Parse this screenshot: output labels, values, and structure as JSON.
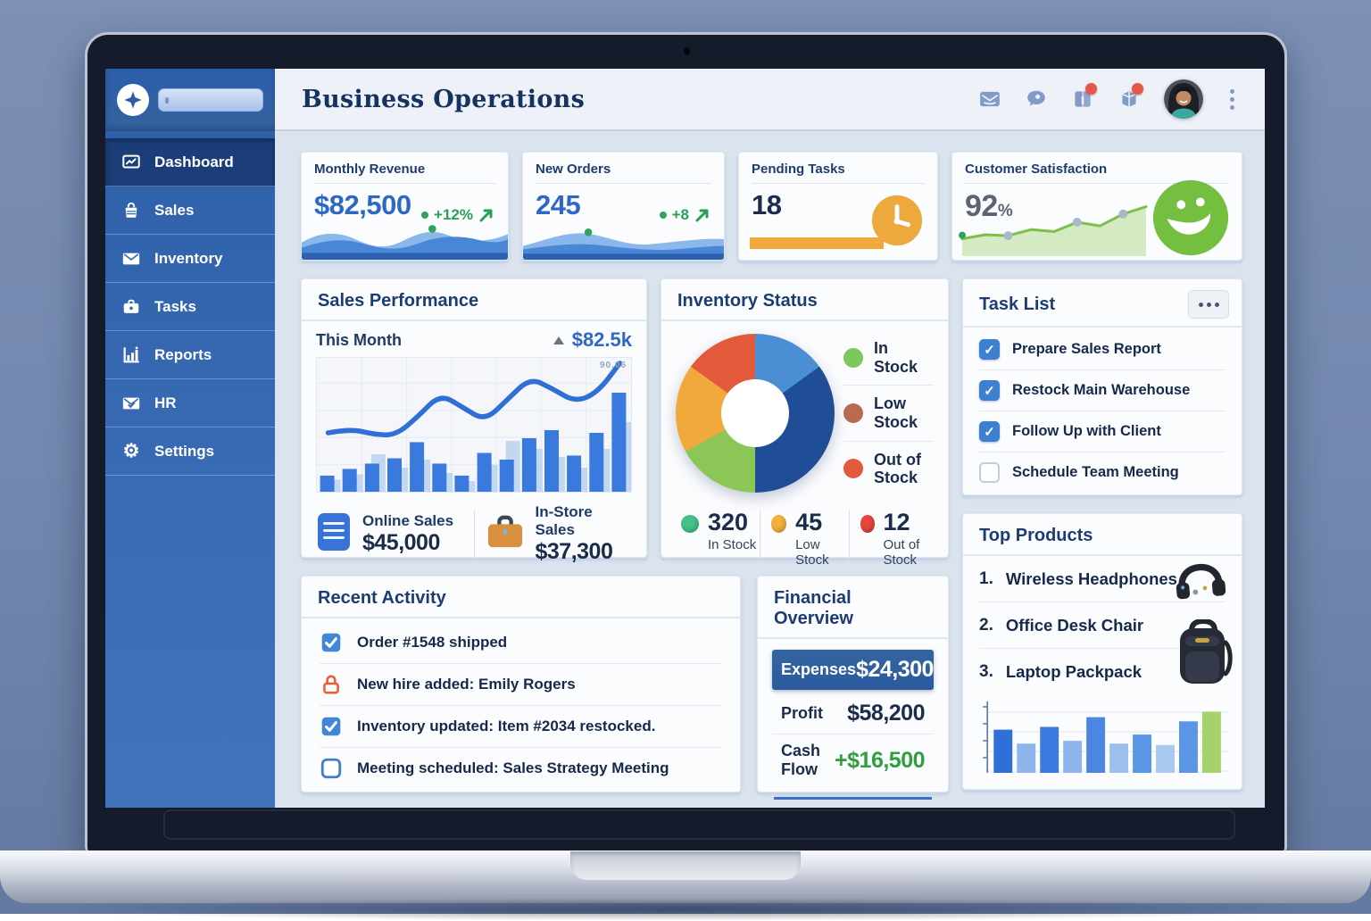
{
  "app": {
    "title": "Business Operations"
  },
  "sidebar": {
    "nav": [
      {
        "label": "Dashboard",
        "icon": "dashboard",
        "active": true
      },
      {
        "label": "Sales",
        "icon": "sales",
        "active": false
      },
      {
        "label": "Inventory",
        "icon": "inventory",
        "active": false
      },
      {
        "label": "Tasks",
        "icon": "tasks",
        "active": false
      },
      {
        "label": "Reports",
        "icon": "reports",
        "active": false
      },
      {
        "label": "HR",
        "icon": "hr",
        "active": false
      },
      {
        "label": "Settings",
        "icon": "settings",
        "active": false
      }
    ]
  },
  "header": {
    "actions": [
      {
        "icon": "mail",
        "badge": false
      },
      {
        "icon": "chat",
        "badge": false
      },
      {
        "icon": "contacts",
        "badge": true
      },
      {
        "icon": "notifications",
        "badge": true
      }
    ]
  },
  "kpis": {
    "monthly_revenue": {
      "title": "Monthly Revenue",
      "value": "$82,500",
      "delta": "+12%"
    },
    "new_orders": {
      "title": "New Orders",
      "value": "245",
      "delta": "+8"
    },
    "pending_tasks": {
      "title": "Pending Tasks",
      "value": "18"
    },
    "customer_satisfaction": {
      "title": "Customer Satisfaction",
      "value": "92",
      "unit": "%"
    }
  },
  "sales_performance": {
    "title": "Sales Performance",
    "period_label": "This Month",
    "period_value": "$82.5k",
    "chart_tag": "90.06",
    "stats": [
      {
        "label": "Online Sales",
        "value": "$45,000",
        "icon": "online"
      },
      {
        "label": "In-Store Sales",
        "value": "$37,300",
        "icon": "store"
      }
    ]
  },
  "inventory_status": {
    "title": "Inventory Status",
    "legend": [
      {
        "label": "In Stock",
        "color": "#7cc85c"
      },
      {
        "label": "Low Stock",
        "color": "#b96a50"
      },
      {
        "label": "Out of Stock",
        "color": "#e2593c"
      }
    ],
    "stats": [
      {
        "value": "320",
        "label": "In Stock",
        "color": "#45c287"
      },
      {
        "value": "45",
        "label": "Low Stock",
        "color": "#f2b13c"
      },
      {
        "value": "12",
        "label": "Out of Stock",
        "color": "#e6463c"
      }
    ]
  },
  "task_list": {
    "title": "Task List",
    "items": [
      {
        "label": "Prepare Sales Report",
        "checked": true
      },
      {
        "label": "Restock Main Warehouse",
        "checked": true
      },
      {
        "label": "Follow Up with Client",
        "checked": true
      },
      {
        "label": "Schedule Team Meeting",
        "checked": false
      }
    ]
  },
  "recent_activity": {
    "title": "Recent Activity",
    "items": [
      {
        "label": "Order #1548 shipped",
        "icon": "checkbox-checked"
      },
      {
        "label": "New hire added: Emily Rogers",
        "icon": "lock"
      },
      {
        "label": "Inventory updated: Item #2034 restocked.",
        "icon": "checkbox-checked"
      },
      {
        "label": "Meeting scheduled: Sales Strategy Meeting",
        "icon": "checkbox-empty"
      }
    ]
  },
  "financial_overview": {
    "title": "Financial Overview",
    "rows": [
      {
        "label": "Expenses",
        "value": "$24,300",
        "style": "highlight"
      },
      {
        "label": "Profit",
        "value": "$58,200",
        "style": "normal"
      },
      {
        "label": "Cash Flow",
        "value": "+$16,500",
        "style": "positive"
      }
    ]
  },
  "top_products": {
    "title": "Top Products",
    "items": [
      {
        "rank": "1.",
        "name": "Wireless Headphones"
      },
      {
        "rank": "2.",
        "name": "Office Desk Chair"
      },
      {
        "rank": "3.",
        "name": "Laptop Packpack"
      }
    ]
  },
  "chart_data": [
    {
      "id": "sales-performance-chart",
      "type": "bar",
      "title": "Sales Performance — This Month",
      "total_label": "$82.5k",
      "annotation": "90.06",
      "ylim": [
        0,
        100
      ],
      "grid": true,
      "series": [
        {
          "name": "daily-sales-bars",
          "type": "bar",
          "values": [
            12,
            17,
            21,
            25,
            37,
            21,
            12,
            29,
            24,
            40,
            46,
            27,
            44,
            74
          ]
        },
        {
          "name": "secondary-bars",
          "type": "bar",
          "values": [
            9,
            13,
            28,
            18,
            24,
            14,
            8,
            20,
            38,
            32,
            26,
            18,
            32,
            52
          ]
        },
        {
          "name": "trend-line",
          "type": "line",
          "values": [
            44,
            47,
            43,
            42,
            56,
            73,
            63,
            53,
            69,
            85,
            77,
            67,
            74,
            96
          ]
        }
      ]
    },
    {
      "id": "inventory-donut",
      "type": "pie",
      "title": "Inventory Status",
      "hole": 0.43,
      "slices": [
        {
          "label": "",
          "value": 15,
          "color": "#4a8fd4"
        },
        {
          "label": "",
          "value": 35,
          "color": "#1f4e97"
        },
        {
          "label": "In Stock",
          "value": 17,
          "color": "#8bc657"
        },
        {
          "label": "Low Stock",
          "value": 18,
          "color": "#f2a93b"
        },
        {
          "label": "Out of Stock",
          "value": 15,
          "color": "#e2593c"
        }
      ]
    },
    {
      "id": "satisfaction-spark",
      "type": "line",
      "title": "Customer Satisfaction trend",
      "ylim": [
        0,
        100
      ],
      "values": [
        30,
        38,
        36,
        48,
        44,
        62,
        55,
        78,
        92
      ]
    },
    {
      "id": "top-products-chart",
      "type": "bar",
      "title": "Top Products sales",
      "ylim": [
        0,
        100
      ],
      "values": [
        62,
        42,
        66,
        46,
        80,
        42,
        55,
        40,
        74,
        88
      ],
      "colors": [
        "#2e6fd8",
        "#8fb6ec",
        "#3b7ade",
        "#8fb6ec",
        "#4a86e2",
        "#9cc0ee",
        "#5b95e6",
        "#a9c9f0",
        "#5b95e6",
        "#a5d36b"
      ]
    }
  ]
}
